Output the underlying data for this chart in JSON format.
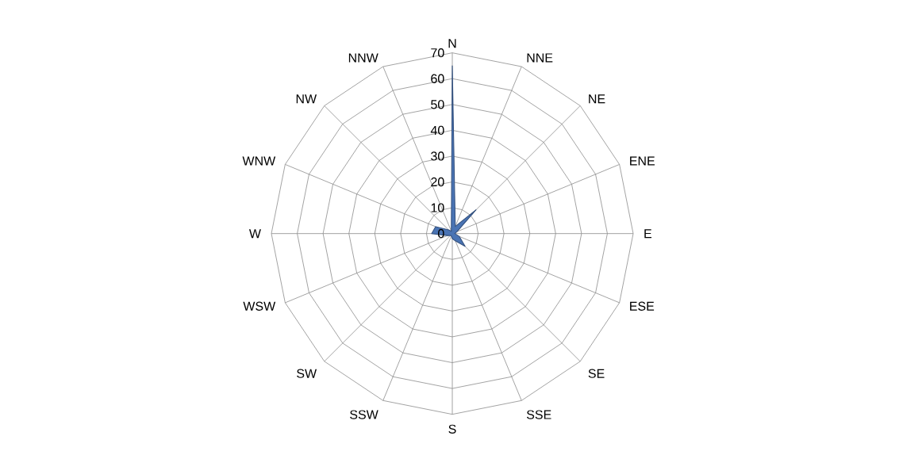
{
  "chart_data": {
    "type": "radar",
    "categories": [
      "N",
      "NNE",
      "NE",
      "ENE",
      "E",
      "ESE",
      "SE",
      "SSE",
      "S",
      "SSW",
      "SW",
      "WSW",
      "W",
      "WNW",
      "NW",
      "NNW"
    ],
    "series": [
      {
        "color": "#4a74b4",
        "values": [
          65,
          3,
          13,
          2,
          1,
          3,
          7,
          3,
          2,
          1,
          1,
          2,
          8,
          7,
          2,
          1
        ]
      }
    ],
    "ylim": [
      0,
      70
    ],
    "yticks": [
      0,
      10,
      20,
      30,
      40,
      50,
      60,
      70
    ],
    "grid": true
  }
}
